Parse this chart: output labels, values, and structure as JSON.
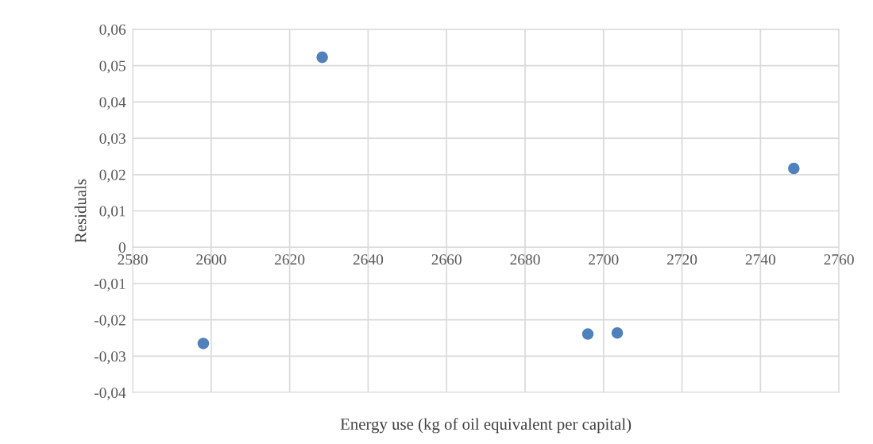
{
  "chart_data": {
    "type": "scatter",
    "xlabel": "Energy use (kg of oil equivalent per capital)",
    "ylabel": "Residuals",
    "x": [
      2598,
      2628.3,
      2696,
      2703.5,
      2748.5
    ],
    "series": [
      {
        "color": "#4f81bd",
        "values": [
          -0.0265,
          0.0523,
          -0.0239,
          -0.0236,
          0.0217
        ]
      }
    ],
    "xlim": [
      2580,
      2760
    ],
    "xticks": [
      2580,
      2600,
      2620,
      2640,
      2660,
      2680,
      2700,
      2720,
      2740,
      2760
    ],
    "ylim": [
      -0.04,
      0.06
    ],
    "yticks": [
      {
        "value": -0.04,
        "label": "-0,04"
      },
      {
        "value": -0.03,
        "label": "-0,03"
      },
      {
        "value": -0.02,
        "label": "-0,02"
      },
      {
        "value": -0.01,
        "label": "-0,01"
      },
      0,
      {
        "value": 0.01,
        "label": "0,01"
      },
      {
        "value": 0.02,
        "label": "0,02"
      },
      {
        "value": 0.03,
        "label": "0,03"
      },
      {
        "value": 0.04,
        "label": "0,04"
      },
      {
        "value": 0.05,
        "label": "0,05"
      },
      {
        "value": 0.06,
        "label": "0,06"
      }
    ],
    "grid": true,
    "marker": "circle",
    "legend": false
  }
}
